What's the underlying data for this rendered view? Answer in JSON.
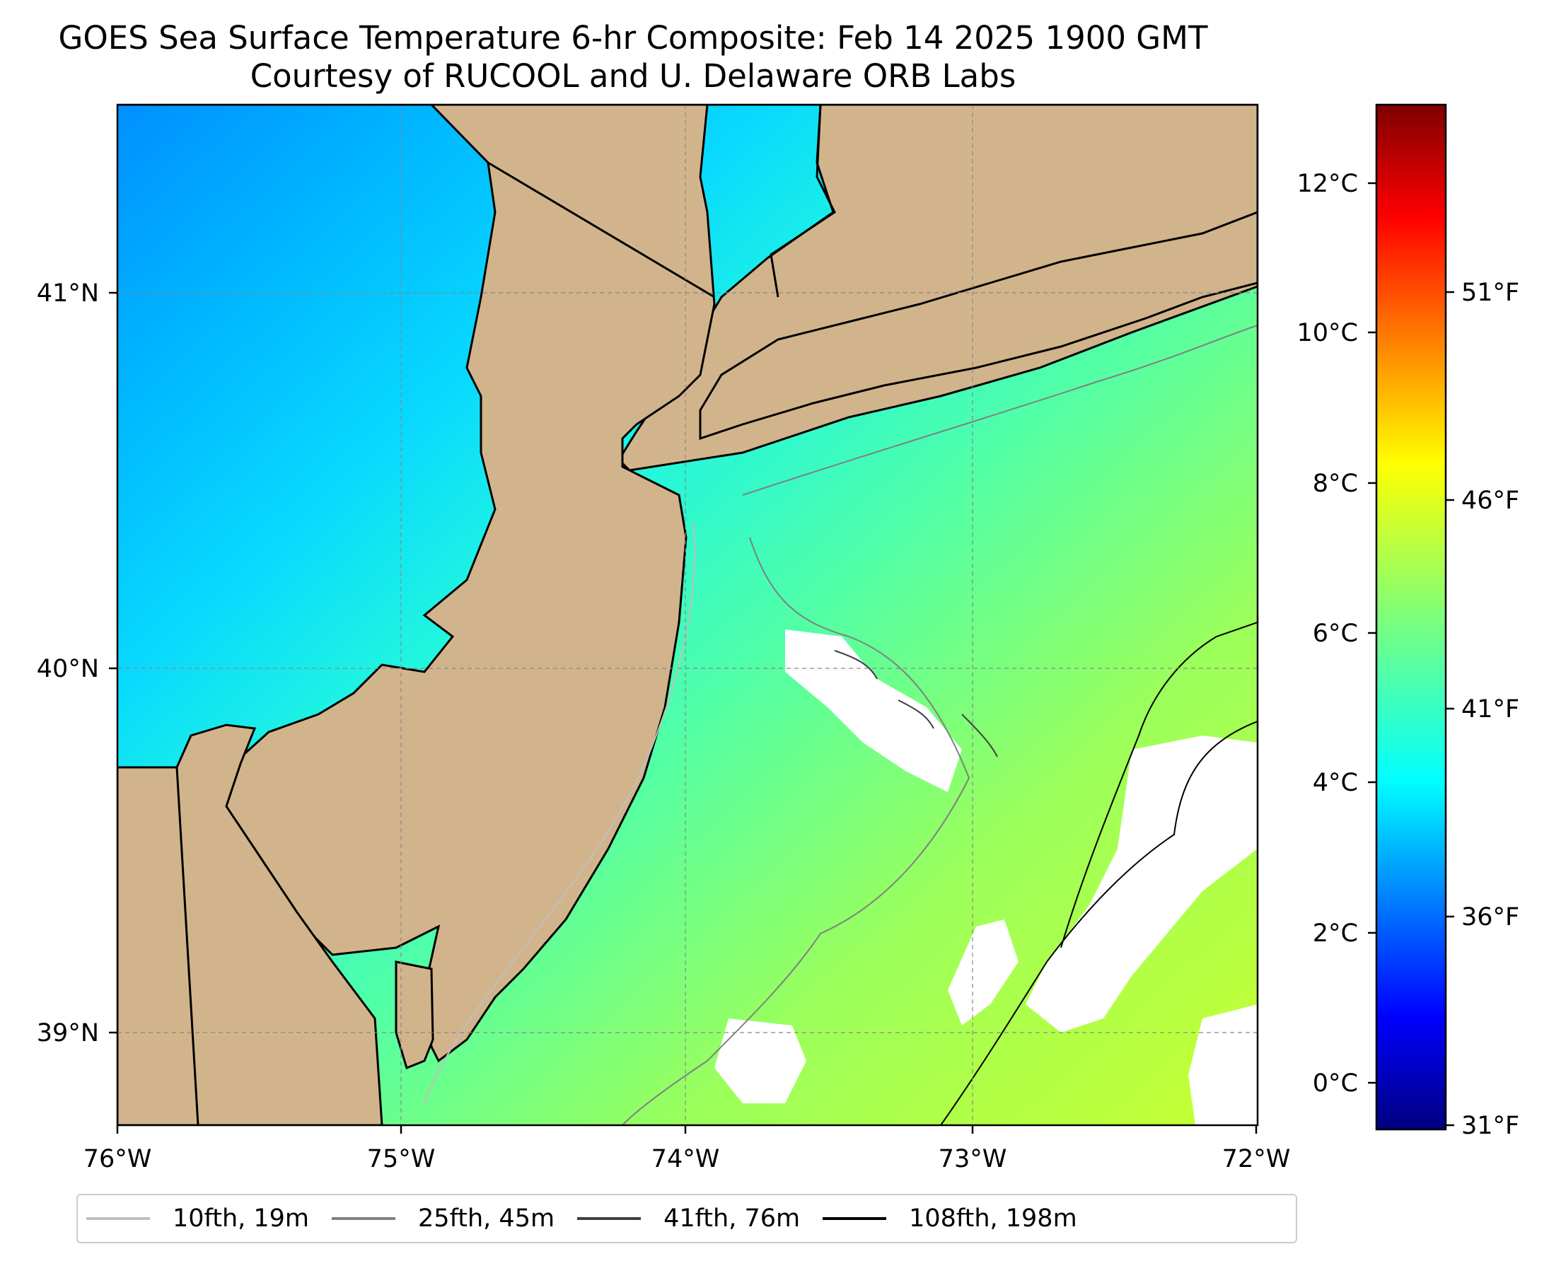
{
  "title": {
    "line1": "GOES Sea Surface Temperature 6-hr Composite: Feb 14 2025 1900 GMT",
    "line2": "Courtesy of RUCOOL and U. Delaware ORB Labs"
  },
  "map": {
    "lon_range": [
      -76,
      -72
    ],
    "lat_range": [
      38.75,
      41.5
    ],
    "x_ticks": [
      "76°W",
      "75°W",
      "74°W",
      "73°W",
      "72°W"
    ],
    "y_ticks": [
      "41°N",
      "40°N",
      "39°N"
    ],
    "land_color": "#d2b48c",
    "grid": "dashed"
  },
  "colorbar": {
    "colormap": "jet",
    "celsius_ticks": [
      "0°C",
      "2°C",
      "4°C",
      "6°C",
      "8°C",
      "10°C",
      "12°C"
    ],
    "fahrenheit_ticks": [
      "31°F",
      "36°F",
      "41°F",
      "46°F",
      "51°F"
    ],
    "range_celsius": [
      -0.6,
      13.1
    ]
  },
  "legend": {
    "items": [
      {
        "label": "10fth, 19m",
        "color": "#bfbfbf"
      },
      {
        "label": "25fth, 45m",
        "color": "#808080"
      },
      {
        "label": "41fth, 76m",
        "color": "#404040"
      },
      {
        "label": "108fth, 198m",
        "color": "#000000"
      }
    ]
  }
}
